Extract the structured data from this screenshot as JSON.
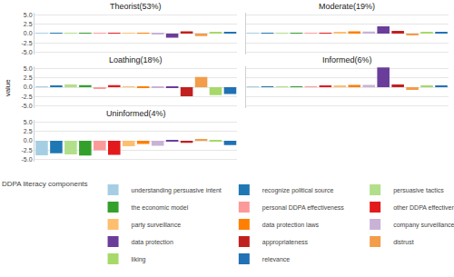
{
  "chart_data": {
    "type": "bar",
    "y_label": "value",
    "legend_title": "DDPA literacy components",
    "legend": "bottom",
    "grid": true,
    "tick_labels": "y",
    "categories": [
      "understanding persuasive intent",
      "recognize political source",
      "persuasive tactics",
      "the economic model",
      "personal DDPA effectiveness",
      "other DDPA effectiveness",
      "party surveillance",
      "data protection laws",
      "company surveillance",
      "data protection",
      "appropriateness",
      "distrust",
      "liking",
      "relevance"
    ],
    "colors": [
      "#a6cee3",
      "#1f78b4",
      "#b2df8a",
      "#33a02c",
      "#fb9a99",
      "#e31a1c",
      "#fdbf6f",
      "#ff7f00",
      "#cab2d6",
      "#6a3d9a",
      "#c0211f",
      "#f39c4a",
      "#a6d96a",
      "#2171b5"
    ],
    "ylim": [
      -5.5,
      5.5
    ],
    "yticks": [
      {
        "value": -5,
        "label": "-5.0"
      },
      {
        "value": -2.5,
        "label": "-2.5"
      },
      {
        "value": 0,
        "label": "0.0"
      },
      {
        "value": 2.5,
        "label": "2.5"
      },
      {
        "value": 5,
        "label": "5.0"
      }
    ],
    "panels": [
      {
        "title": "Theorist(53%)",
        "values": [
          0.1,
          0.1,
          0.05,
          0.1,
          0.2,
          0.15,
          0.05,
          0.05,
          -0.1,
          -1.1,
          0.6,
          -0.65,
          0.45,
          0.4
        ]
      },
      {
        "title": "Moderate(19%)",
        "values": [
          0.05,
          0.05,
          0.05,
          0.05,
          0.1,
          0.15,
          0.35,
          0.6,
          0.55,
          1.9,
          0.7,
          -0.5,
          0.3,
          0.45
        ]
      },
      {
        "title": "Loathing(18%)",
        "values": [
          0.2,
          0.5,
          0.7,
          0.55,
          -0.5,
          0.55,
          0.05,
          -0.05,
          -0.1,
          -0.1,
          -2.4,
          2.7,
          -2.1,
          -1.8
        ]
      },
      {
        "title": "Informed(6%)",
        "values": [
          0.05,
          0.05,
          0.1,
          0.15,
          0.2,
          0.25,
          0.4,
          0.6,
          0.6,
          5.2,
          0.7,
          -0.7,
          0.4,
          0.5
        ]
      },
      {
        "title": "Uninformed(4%)",
        "values": [
          -3.8,
          -3.3,
          -3.6,
          -3.9,
          -2.5,
          -3.7,
          -1.4,
          -0.8,
          -1.3,
          -0.2,
          -0.5,
          0.5,
          -0.2,
          -1.1
        ]
      }
    ]
  }
}
